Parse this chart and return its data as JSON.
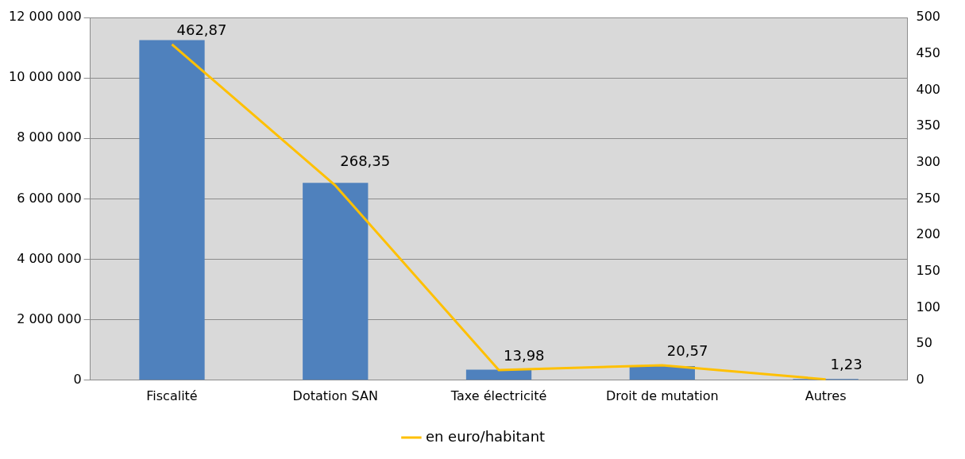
{
  "chart_data": {
    "type": "bar",
    "categories": [
      "Fiscalité",
      "Dotation SAN",
      "Taxe électricité",
      "Droit de mutation",
      "Autres"
    ],
    "series": [
      {
        "color": "#4f81bd",
        "values": [
          11250000,
          6530000,
          350000,
          470000,
          40000
        ]
      },
      {
        "type": "line",
        "name": "en euro/habitant",
        "color": "#ffc000",
        "axis": "y2",
        "values": [
          462.87,
          268.35,
          13.98,
          20.57,
          1.23
        ],
        "value_labels": [
          "462,87",
          "268,35",
          "13,98",
          "20,57",
          "1,23"
        ]
      }
    ],
    "ylim": [
      0,
      12000000
    ],
    "yticks": [
      {
        "value": 0,
        "label": "0"
      },
      {
        "value": 2000000,
        "label": "2 000 000"
      },
      {
        "value": 4000000,
        "label": "4 000 000"
      },
      {
        "value": 6000000,
        "label": "6 000 000"
      },
      {
        "value": 8000000,
        "label": "8 000 000"
      },
      {
        "value": 10000000,
        "label": "10 000 000"
      },
      {
        "value": 12000000,
        "label": "12 000 000"
      }
    ],
    "y2lim": [
      0,
      500
    ],
    "y2ticks": [
      0,
      50,
      100,
      150,
      200,
      250,
      300,
      350,
      400,
      450,
      500
    ],
    "grid": "y",
    "legend": "bottom",
    "marker": "none"
  }
}
